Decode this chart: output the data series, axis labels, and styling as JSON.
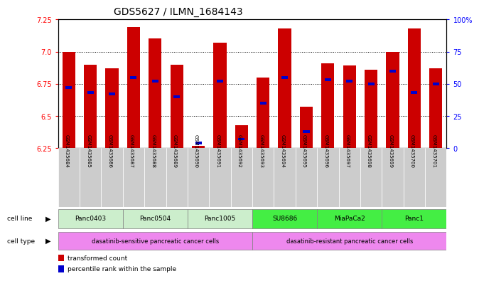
{
  "title": "GDS5627 / ILMN_1684143",
  "samples": [
    "GSM1435684",
    "GSM1435685",
    "GSM1435686",
    "GSM1435687",
    "GSM1435688",
    "GSM1435689",
    "GSM1435690",
    "GSM1435691",
    "GSM1435692",
    "GSM1435693",
    "GSM1435694",
    "GSM1435695",
    "GSM1435696",
    "GSM1435697",
    "GSM1435698",
    "GSM1435699",
    "GSM1435700",
    "GSM1435701"
  ],
  "bar_heights": [
    7.0,
    6.9,
    6.87,
    7.19,
    7.1,
    6.9,
    6.27,
    7.07,
    6.43,
    6.8,
    7.18,
    6.57,
    6.91,
    6.89,
    6.86,
    7.0,
    7.18,
    6.87
  ],
  "blue_marker_pos": [
    6.72,
    6.68,
    6.67,
    6.8,
    6.77,
    6.65,
    6.29,
    6.77,
    6.32,
    6.6,
    6.8,
    6.38,
    6.78,
    6.77,
    6.75,
    6.85,
    6.68,
    6.75
  ],
  "ylim_min": 6.25,
  "ylim_max": 7.25,
  "yticks_left": [
    6.25,
    6.5,
    6.75,
    7.0,
    7.25
  ],
  "yticks_right_vals": [
    0,
    25,
    50,
    75,
    100
  ],
  "yticks_right_labels": [
    "0",
    "25",
    "50",
    "75",
    "100%"
  ],
  "cell_lines": [
    {
      "name": "Panc0403",
      "start": 0,
      "end": 2,
      "color": "#cceecc"
    },
    {
      "name": "Panc0504",
      "start": 3,
      "end": 5,
      "color": "#cceecc"
    },
    {
      "name": "Panc1005",
      "start": 6,
      "end": 8,
      "color": "#cceecc"
    },
    {
      "name": "SU8686",
      "start": 9,
      "end": 11,
      "color": "#44ee44"
    },
    {
      "name": "MiaPaCa2",
      "start": 12,
      "end": 14,
      "color": "#44ee44"
    },
    {
      "name": "Panc1",
      "start": 15,
      "end": 17,
      "color": "#44ee44"
    }
  ],
  "cell_types": [
    {
      "name": "dasatinib-sensitive pancreatic cancer cells",
      "start": 0,
      "end": 8,
      "color": "#ee88ee"
    },
    {
      "name": "dasatinib-resistant pancreatic cancer cells",
      "start": 9,
      "end": 17,
      "color": "#ee88ee"
    }
  ],
  "bar_color": "#cc0000",
  "blue_color": "#0000cc",
  "sample_bg_color": "#cccccc",
  "title_fontsize": 10,
  "tick_fontsize": 7,
  "label_fontsize": 7
}
